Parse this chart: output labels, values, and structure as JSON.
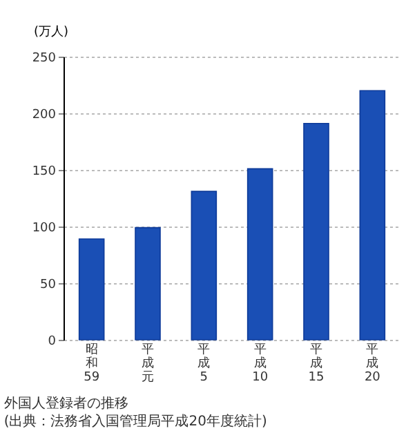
{
  "chart_data": {
    "type": "bar",
    "title": "外国人登録者の推移",
    "annotations": [
      "(出典：法務省入国管理局平成20年度統計)"
    ],
    "ylabel": "(万人)",
    "categories": [
      "昭和59",
      "平成元",
      "平成5",
      "平成10",
      "平成15",
      "平成20"
    ],
    "values": [
      89,
      99,
      131,
      151,
      191,
      220
    ],
    "color": "#1a4fb5",
    "ylim": [
      0,
      250
    ],
    "yticks": [
      0,
      50,
      100,
      150,
      200,
      250
    ],
    "grid": "y"
  }
}
